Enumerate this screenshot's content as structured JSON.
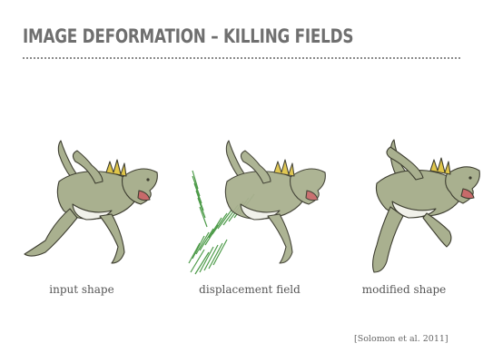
{
  "slide": {
    "title": "IMAGE DEFORMATION – KILLING FIELDS",
    "panels": [
      {
        "caption": "input shape",
        "figure": "raptor-input"
      },
      {
        "caption": "displacement field",
        "figure": "raptor-with-displacement-field"
      },
      {
        "caption": "modified shape",
        "figure": "raptor-deformed"
      }
    ],
    "citation": "[Solomon et al. 2011]"
  },
  "colors": {
    "title": "#6f6f6f",
    "body": "#a8b08e",
    "crest": "#e0c64a",
    "field": "#2f8a2a"
  }
}
